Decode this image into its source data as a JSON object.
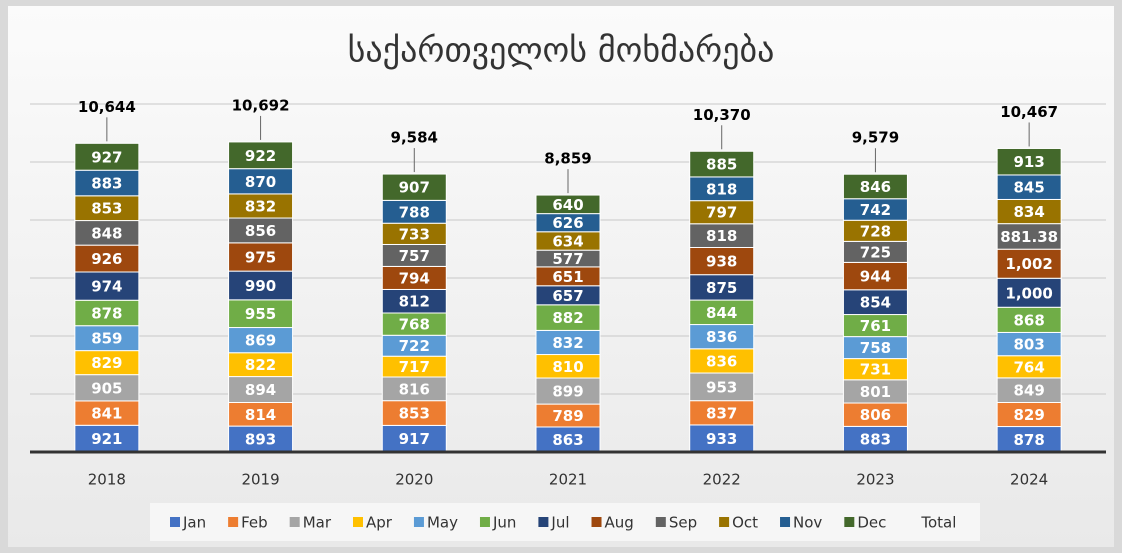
{
  "chart_data": {
    "type": "stacked_bar",
    "title": "საქართველოს მოხმარება",
    "categories": [
      "2018",
      "2019",
      "2020",
      "2021",
      "2022",
      "2023",
      "2024"
    ],
    "ylim": [
      0,
      12000
    ],
    "yticks": [
      0,
      2000,
      4000,
      6000,
      8000,
      10000,
      12000
    ],
    "grid": true,
    "series": [
      {
        "name": "Jan",
        "color": "#4472c4",
        "values": [
          921,
          893,
          917,
          863,
          933,
          883,
          878
        ]
      },
      {
        "name": "Feb",
        "color": "#ed7d31",
        "values": [
          841,
          814,
          853,
          789,
          837,
          806,
          829
        ]
      },
      {
        "name": "Mar",
        "color": "#a5a5a5",
        "values": [
          905,
          894,
          816,
          899,
          953,
          801,
          849
        ]
      },
      {
        "name": "Apr",
        "color": "#ffc000",
        "values": [
          829,
          822,
          717,
          810,
          836,
          731,
          764
        ]
      },
      {
        "name": "May",
        "color": "#5b9bd5",
        "values": [
          859,
          869,
          722,
          832,
          836,
          758,
          803
        ]
      },
      {
        "name": "Jun",
        "color": "#70ad47",
        "values": [
          878,
          955,
          768,
          882,
          844,
          761,
          868
        ]
      },
      {
        "name": "Jul",
        "color": "#264478",
        "values": [
          974,
          990,
          812,
          657,
          875,
          854,
          1000
        ],
        "value_labels": [
          "974",
          "990",
          "812",
          "657",
          "875",
          "854",
          "1,000"
        ]
      },
      {
        "name": "Aug",
        "color": "#9e480e",
        "values": [
          926,
          975,
          794,
          651,
          938,
          944,
          1002
        ],
        "value_labels": [
          "926",
          "975",
          "794",
          "651",
          "938",
          "944",
          "1,002"
        ]
      },
      {
        "name": "Sep",
        "color": "#636363",
        "values": [
          848,
          856,
          757,
          577,
          818,
          725,
          881.38
        ]
      },
      {
        "name": "Oct",
        "color": "#997300",
        "values": [
          853,
          832,
          733,
          634,
          797,
          728,
          834
        ]
      },
      {
        "name": "Nov",
        "color": "#255e91",
        "values": [
          883,
          870,
          788,
          626,
          818,
          742,
          845
        ]
      },
      {
        "name": "Dec",
        "color": "#43682b",
        "values": [
          927,
          922,
          907,
          640,
          885,
          846,
          913
        ]
      }
    ],
    "totals": {
      "name": "Total",
      "values": [
        10644,
        10692,
        9584,
        8859,
        10370,
        9579,
        10467
      ],
      "value_labels": [
        "10,644",
        "10,692",
        "9,584",
        "8,859",
        "10,370",
        "9,579",
        "10,467"
      ]
    }
  }
}
